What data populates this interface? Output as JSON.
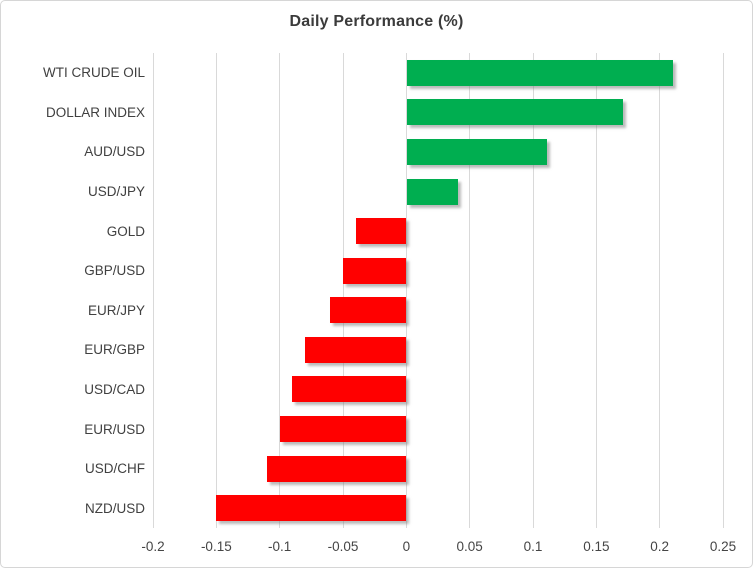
{
  "chart_data": {
    "type": "bar",
    "orientation": "horizontal",
    "title": "Daily Performance (%)",
    "categories": [
      "WTI CRUDE OIL",
      "DOLLAR INDEX",
      "AUD/USD",
      "USD/JPY",
      "GOLD",
      "GBP/USD",
      "EUR/JPY",
      "EUR/GBP",
      "USD/CAD",
      "EUR/USD",
      "USD/CHF",
      "NZD/USD"
    ],
    "values": [
      0.21,
      0.17,
      0.11,
      0.04,
      -0.04,
      -0.05,
      -0.06,
      -0.08,
      -0.09,
      -0.1,
      -0.11,
      -0.15
    ],
    "xlabel": "",
    "ylabel": "",
    "xlim": [
      -0.2,
      0.25
    ],
    "xticks": [
      -0.2,
      -0.15,
      -0.1,
      -0.05,
      0,
      0.05,
      0.1,
      0.15,
      0.2,
      0.25
    ],
    "xtick_labels": [
      "-0.2",
      "-0.15",
      "-0.1",
      "-0.05",
      "0",
      "0.05",
      "0.1",
      "0.15",
      "0.2",
      "0.25"
    ],
    "grid": "vertical",
    "legend": "none",
    "positive_color": "#00AE50",
    "negative_color": "#FF0000",
    "gridline_color": "#D9D9D9",
    "text_color": "#404040"
  }
}
